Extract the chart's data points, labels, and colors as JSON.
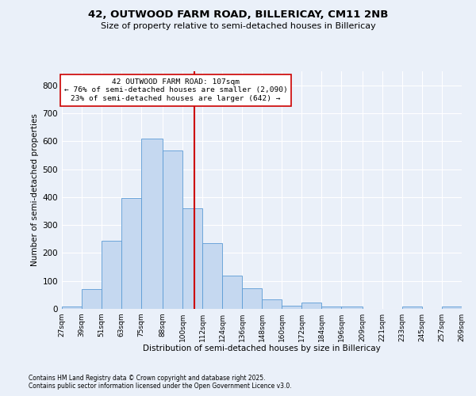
{
  "title1": "42, OUTWOOD FARM ROAD, BILLERICAY, CM11 2NB",
  "title2": "Size of property relative to semi-detached houses in Billericay",
  "xlabel": "Distribution of semi-detached houses by size in Billericay",
  "ylabel": "Number of semi-detached properties",
  "footnote1": "Contains HM Land Registry data © Crown copyright and database right 2025.",
  "footnote2": "Contains public sector information licensed under the Open Government Licence v3.0.",
  "annotation_line1": "42 OUTWOOD FARM ROAD: 107sqm",
  "annotation_line2": "← 76% of semi-detached houses are smaller (2,090)",
  "annotation_line3": "23% of semi-detached houses are larger (642) →",
  "bar_left_edges": [
    27,
    39,
    51,
    63,
    75,
    88,
    100,
    112,
    124,
    136,
    148,
    160,
    172,
    184,
    196,
    209,
    221,
    233,
    245,
    257
  ],
  "bar_heights": [
    8,
    70,
    245,
    397,
    610,
    567,
    360,
    235,
    120,
    75,
    33,
    12,
    24,
    8,
    8,
    0,
    0,
    8,
    0,
    8
  ],
  "bar_widths": [
    12,
    12,
    12,
    12,
    13,
    12,
    12,
    12,
    12,
    12,
    12,
    12,
    12,
    12,
    13,
    12,
    12,
    12,
    12,
    12
  ],
  "tick_labels": [
    "27sqm",
    "39sqm",
    "51sqm",
    "63sqm",
    "75sqm",
    "88sqm",
    "100sqm",
    "112sqm",
    "124sqm",
    "136sqm",
    "148sqm",
    "160sqm",
    "172sqm",
    "184sqm",
    "196sqm",
    "209sqm",
    "221sqm",
    "233sqm",
    "245sqm",
    "257sqm",
    "269sqm"
  ],
  "bar_color": "#c5d8f0",
  "bar_edge_color": "#5b9bd5",
  "vline_x": 107,
  "vline_color": "#cc0000",
  "bg_color": "#eaf0f9",
  "grid_color": "#ffffff",
  "annotation_box_color": "#ffffff",
  "annotation_box_edge": "#cc0000",
  "ylim": [
    0,
    850
  ],
  "yticks": [
    0,
    100,
    200,
    300,
    400,
    500,
    600,
    700,
    800
  ]
}
